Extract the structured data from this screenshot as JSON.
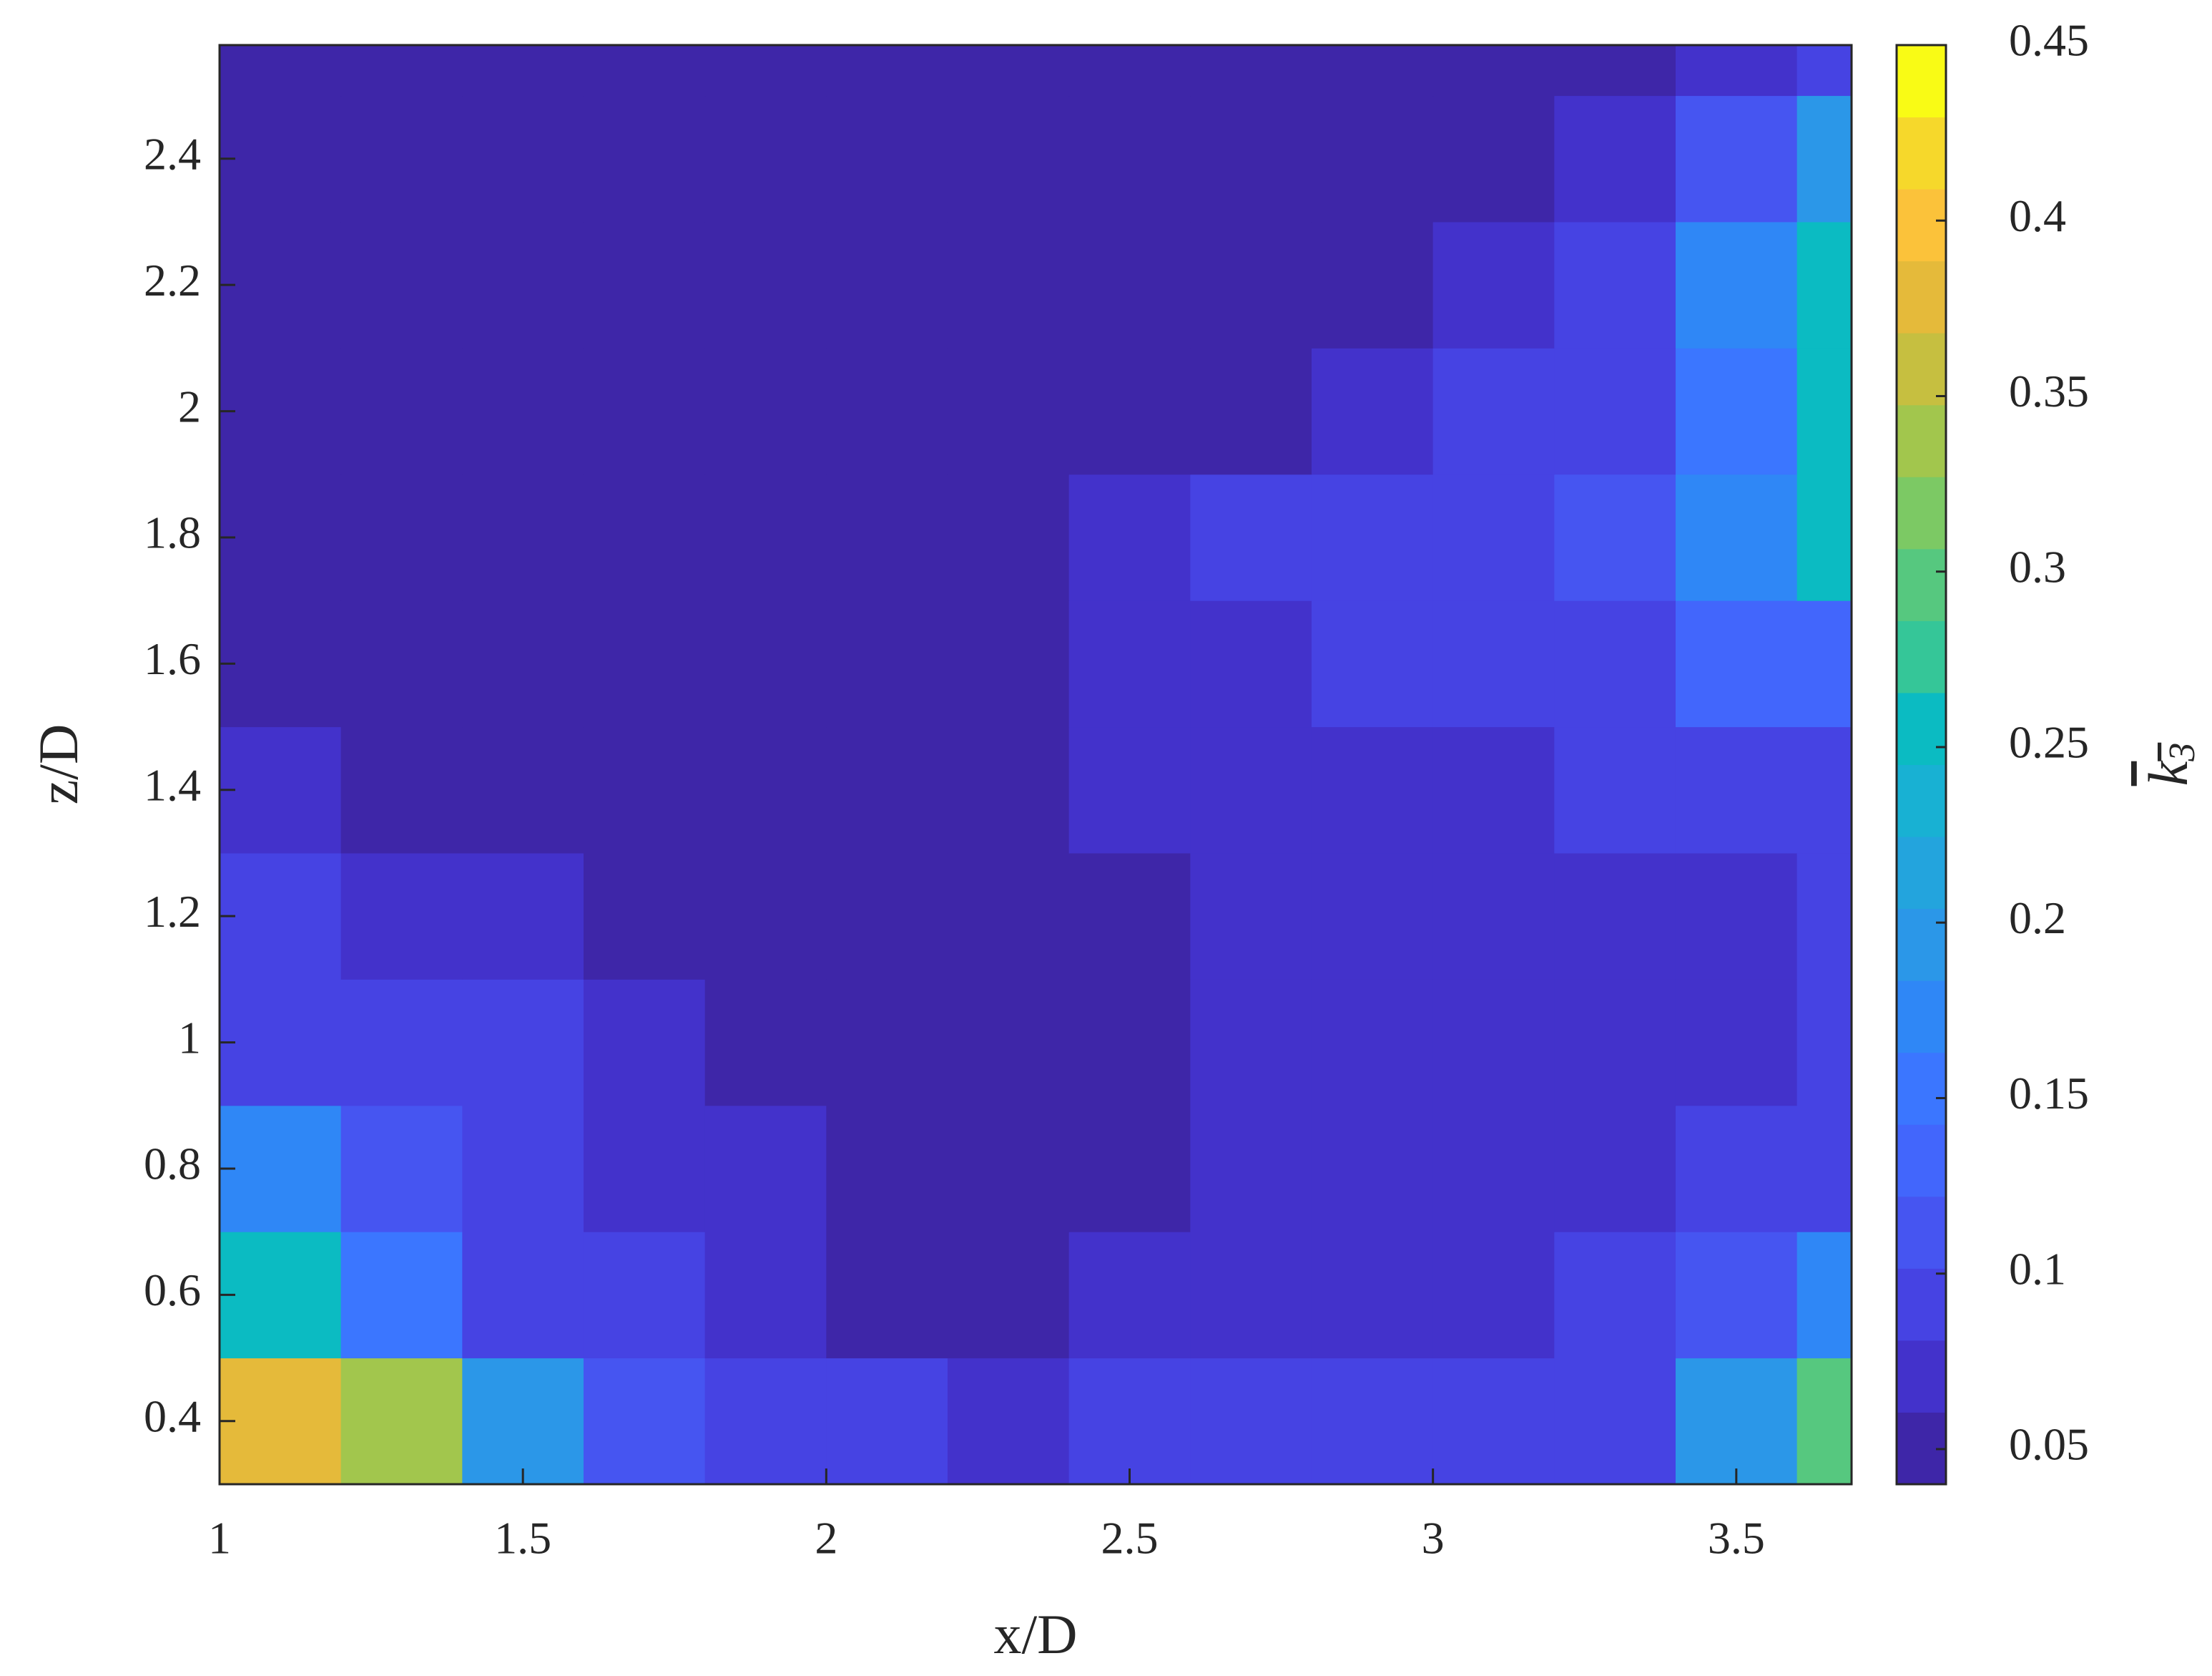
{
  "chart_data": {
    "type": "contour",
    "xlabel": "x/D",
    "ylabel": "z/D",
    "colorbar_label": {
      "symbol": "k",
      "subscript": "3"
    },
    "xlim": [
      1,
      3.69
    ],
    "xticks": [
      1,
      1.5,
      2,
      2.5,
      3,
      3.5
    ],
    "ylim": [
      0.3,
      2.58
    ],
    "yticks": [
      0.4,
      0.6,
      0.8,
      1,
      1.2,
      1.4,
      1.6,
      1.8,
      2,
      2.2,
      2.4
    ],
    "clim": [
      0.04,
      0.45
    ],
    "cticks": [
      0.05,
      0.1,
      0.15,
      0.2,
      0.25,
      0.3,
      0.35,
      0.4,
      0.45
    ],
    "colormap": [
      "#3e26a8",
      "#4332cb",
      "#4643e3",
      "#4655f1",
      "#4266fc",
      "#3b76ff",
      "#2f87f6",
      "#2b97e8",
      "#23a4dd",
      "#18b1d3",
      "#0bbbc2",
      "#35c698",
      "#56c87f",
      "#7cc964",
      "#a2c64d",
      "#c6bf40",
      "#e5ba3a",
      "#fbc23a",
      "#f6d82b",
      "#f9fb15"
    ],
    "x": [
      1.1,
      1.3,
      1.5,
      1.7,
      1.9,
      2.1,
      2.3,
      2.5,
      2.7,
      2.9,
      3.1,
      3.3,
      3.5,
      3.7
    ],
    "y": [
      0.4,
      0.6,
      0.8,
      1,
      1.2,
      1.4,
      1.6,
      1.8,
      2,
      2.2,
      2.4,
      2.6
    ],
    "z": [
      [
        0.38,
        0.33,
        0.2,
        0.12,
        0.1,
        0.09,
        0.08,
        0.09,
        0.1,
        0.09,
        0.09,
        0.1,
        0.2,
        0.3
      ],
      [
        0.25,
        0.15,
        0.1,
        0.1,
        0.08,
        0.06,
        0.06,
        0.07,
        0.08,
        0.08,
        0.08,
        0.09,
        0.12,
        0.18
      ],
      [
        0.17,
        0.11,
        0.09,
        0.08,
        0.07,
        0.06,
        0.06,
        0.06,
        0.08,
        0.07,
        0.07,
        0.08,
        0.09,
        0.1
      ],
      [
        0.1,
        0.09,
        0.09,
        0.07,
        0.06,
        0.06,
        0.06,
        0.06,
        0.07,
        0.07,
        0.07,
        0.08,
        0.08,
        0.09
      ],
      [
        0.09,
        0.08,
        0.07,
        0.06,
        0.06,
        0.06,
        0.06,
        0.06,
        0.07,
        0.07,
        0.08,
        0.08,
        0.08,
        0.09
      ],
      [
        0.07,
        0.06,
        0.06,
        0.06,
        0.06,
        0.06,
        0.06,
        0.07,
        0.08,
        0.08,
        0.08,
        0.09,
        0.09,
        0.1
      ],
      [
        0.06,
        0.06,
        0.06,
        0.06,
        0.06,
        0.06,
        0.06,
        0.07,
        0.08,
        0.09,
        0.09,
        0.1,
        0.13,
        0.14
      ],
      [
        0.06,
        0.06,
        0.06,
        0.06,
        0.06,
        0.06,
        0.06,
        0.07,
        0.09,
        0.09,
        0.1,
        0.12,
        0.18,
        0.25
      ],
      [
        0.06,
        0.06,
        0.06,
        0.06,
        0.06,
        0.06,
        0.06,
        0.06,
        0.06,
        0.08,
        0.09,
        0.1,
        0.15,
        0.25
      ],
      [
        0.06,
        0.06,
        0.06,
        0.06,
        0.06,
        0.06,
        0.06,
        0.06,
        0.06,
        0.06,
        0.07,
        0.09,
        0.18,
        0.25
      ],
      [
        0.06,
        0.06,
        0.06,
        0.06,
        0.06,
        0.06,
        0.06,
        0.06,
        0.06,
        0.06,
        0.06,
        0.08,
        0.12,
        0.2
      ],
      [
        0.06,
        0.06,
        0.06,
        0.06,
        0.06,
        0.06,
        0.06,
        0.06,
        0.06,
        0.06,
        0.06,
        0.06,
        0.08,
        0.1
      ]
    ]
  }
}
